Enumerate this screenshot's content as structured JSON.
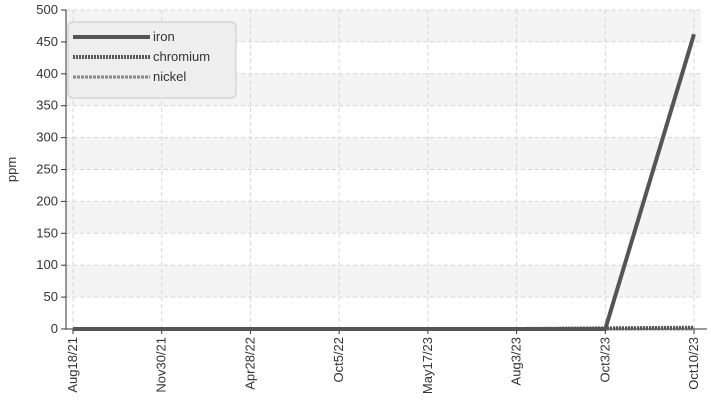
{
  "chart_data": {
    "type": "line",
    "title": "",
    "xlabel": "",
    "ylabel": "ppm",
    "categories": [
      "Aug18/21",
      "Nov30/21",
      "Apr28/22",
      "Oct5/22",
      "May17/23",
      "Aug3/23",
      "Oct3/23",
      "Oct10/23"
    ],
    "ylim": [
      0,
      500
    ],
    "yticks": [
      0,
      50,
      100,
      150,
      200,
      250,
      300,
      350,
      400,
      450,
      500
    ],
    "grid": true,
    "legend_position": "top-left",
    "series": [
      {
        "name": "iron",
        "values": [
          0,
          0,
          0,
          0,
          0,
          0,
          0,
          462
        ],
        "color": "#555555",
        "style": "solid"
      },
      {
        "name": "chromium",
        "values": [
          0,
          0,
          0,
          0,
          0,
          0,
          1,
          2
        ],
        "color": "#555555",
        "style": "dotted"
      },
      {
        "name": "nickel",
        "values": [
          0,
          0,
          0,
          0,
          0,
          0,
          0,
          0
        ],
        "color": "#888888",
        "style": "dashed"
      }
    ]
  }
}
